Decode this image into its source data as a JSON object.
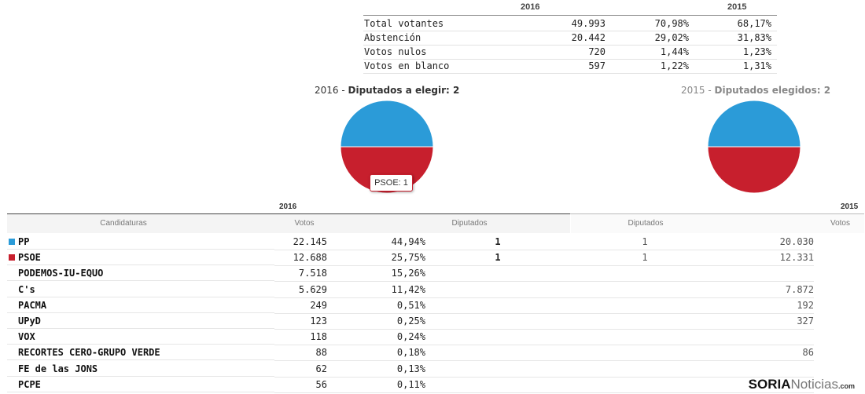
{
  "summary": {
    "year_a": "2016",
    "year_b": "2015",
    "rows": [
      {
        "label": "Total votantes",
        "v2016": "49.993",
        "p2016": "70,98%",
        "p2015": "68,17%"
      },
      {
        "label": "Abstención",
        "v2016": "20.442",
        "p2016": "29,02%",
        "p2015": "31,83%"
      },
      {
        "label": "Votos nulos",
        "v2016": "720",
        "p2016": "1,44%",
        "p2015": "1,23%"
      },
      {
        "label": "Votos en blanco",
        "v2016": "597",
        "p2016": "1,22%",
        "p2015": "1,31%"
      }
    ]
  },
  "pies": {
    "left": {
      "year": "2016",
      "sep": " - ",
      "label": "Diputados a elegir: 2"
    },
    "right": {
      "year": "2015",
      "sep": " - ",
      "label": "Diputados elegidos: 2"
    },
    "tooltip": "PSOE: 1"
  },
  "chart_data": [
    {
      "type": "pie",
      "title": "2016 - Diputados a elegir: 2",
      "labels": [
        "PP",
        "PSOE"
      ],
      "values": [
        1,
        1
      ],
      "colors": [
        "#2b9bd8",
        "#c71f2d"
      ]
    },
    {
      "type": "pie",
      "title": "2015 - Diputados elegidos: 2",
      "labels": [
        "PP",
        "PSOE"
      ],
      "values": [
        1,
        1
      ],
      "colors": [
        "#2b9bd8",
        "#c71f2d"
      ]
    }
  ],
  "results": {
    "year_a": "2016",
    "year_b": "2015",
    "headers": {
      "candidaturas": "Candidaturas",
      "votos": "Votos",
      "diputados": "Diputados",
      "diputados_2015": "Diputados",
      "votos_2015": "Votos"
    },
    "rows": [
      {
        "name": "PP",
        "votos": "22.145",
        "pct": "44,94%",
        "dip": "1",
        "dip15": "1",
        "votos15": "20.030",
        "color": "#2b9bd8"
      },
      {
        "name": "PSOE",
        "votos": "12.688",
        "pct": "25,75%",
        "dip": "1",
        "dip15": "1",
        "votos15": "12.331",
        "color": "#c71f2d"
      },
      {
        "name": "PODEMOS-IU-EQUO",
        "votos": "7.518",
        "pct": "15,26%",
        "dip": "",
        "dip15": "",
        "votos15": "",
        "color": ""
      },
      {
        "name": "C's",
        "votos": "5.629",
        "pct": "11,42%",
        "dip": "",
        "dip15": "",
        "votos15": "7.872",
        "color": ""
      },
      {
        "name": "PACMA",
        "votos": "249",
        "pct": "0,51%",
        "dip": "",
        "dip15": "",
        "votos15": "192",
        "color": ""
      },
      {
        "name": "UPyD",
        "votos": "123",
        "pct": "0,25%",
        "dip": "",
        "dip15": "",
        "votos15": "327",
        "color": ""
      },
      {
        "name": "VOX",
        "votos": "118",
        "pct": "0,24%",
        "dip": "",
        "dip15": "",
        "votos15": "",
        "color": ""
      },
      {
        "name": "RECORTES CERO-GRUPO VERDE",
        "votos": "88",
        "pct": "0,18%",
        "dip": "",
        "dip15": "",
        "votos15": "86",
        "color": ""
      },
      {
        "name": "FE de las JONS",
        "votos": "62",
        "pct": "0,13%",
        "dip": "",
        "dip15": "",
        "votos15": "",
        "color": ""
      },
      {
        "name": "PCPE",
        "votos": "56",
        "pct": "0,11%",
        "dip": "",
        "dip15": "",
        "votos15": "",
        "color": ""
      }
    ]
  },
  "logo": {
    "part1": "SORIA",
    "part2": "Noticias",
    "part3": ".com"
  }
}
